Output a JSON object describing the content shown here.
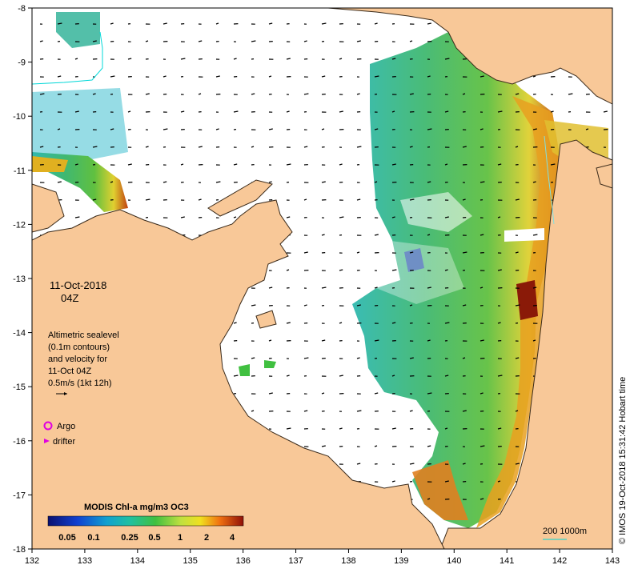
{
  "map": {
    "x_ticks": [
      "132",
      "133",
      "134",
      "135",
      "136",
      "137",
      "138",
      "139",
      "140",
      "141",
      "142",
      "143"
    ],
    "y_ticks": [
      "-8",
      "-9",
      "-10",
      "-11",
      "-12",
      "-13",
      "-14",
      "-15",
      "-16",
      "-17",
      "-18"
    ],
    "date_line": "11-Oct-2018",
    "time_line": "04Z",
    "legend_text": {
      "line1": "Altimetric sealevel",
      "line2": "(0.1m contours)",
      "line3": "and velocity for",
      "line4": "11-Oct 04Z",
      "line5": "0.5m/s (1kt 12h)"
    },
    "markers": {
      "argo_label": "Argo",
      "drifter_label": "drifter"
    },
    "colorbar": {
      "title": "MODIS Chl-a mg/m3 OC3",
      "labels": [
        "0.05",
        "0.1",
        "0.25",
        "0.5",
        "1",
        "2",
        "4"
      ]
    },
    "scale_label": "200  1000m",
    "credit": "© IMOS 19-Oct-2018 15:31:42 Hobart time"
  },
  "colors": {
    "land": "#f8c898",
    "coast": "#3a2a1a",
    "chl_low": "#1a1aa0",
    "chl_mid": "#20b0a0",
    "chl_green": "#40c040",
    "chl_yellow": "#f0e040",
    "chl_high": "#a01808",
    "argo": "#e000e0",
    "contour": "#00d8d8"
  }
}
